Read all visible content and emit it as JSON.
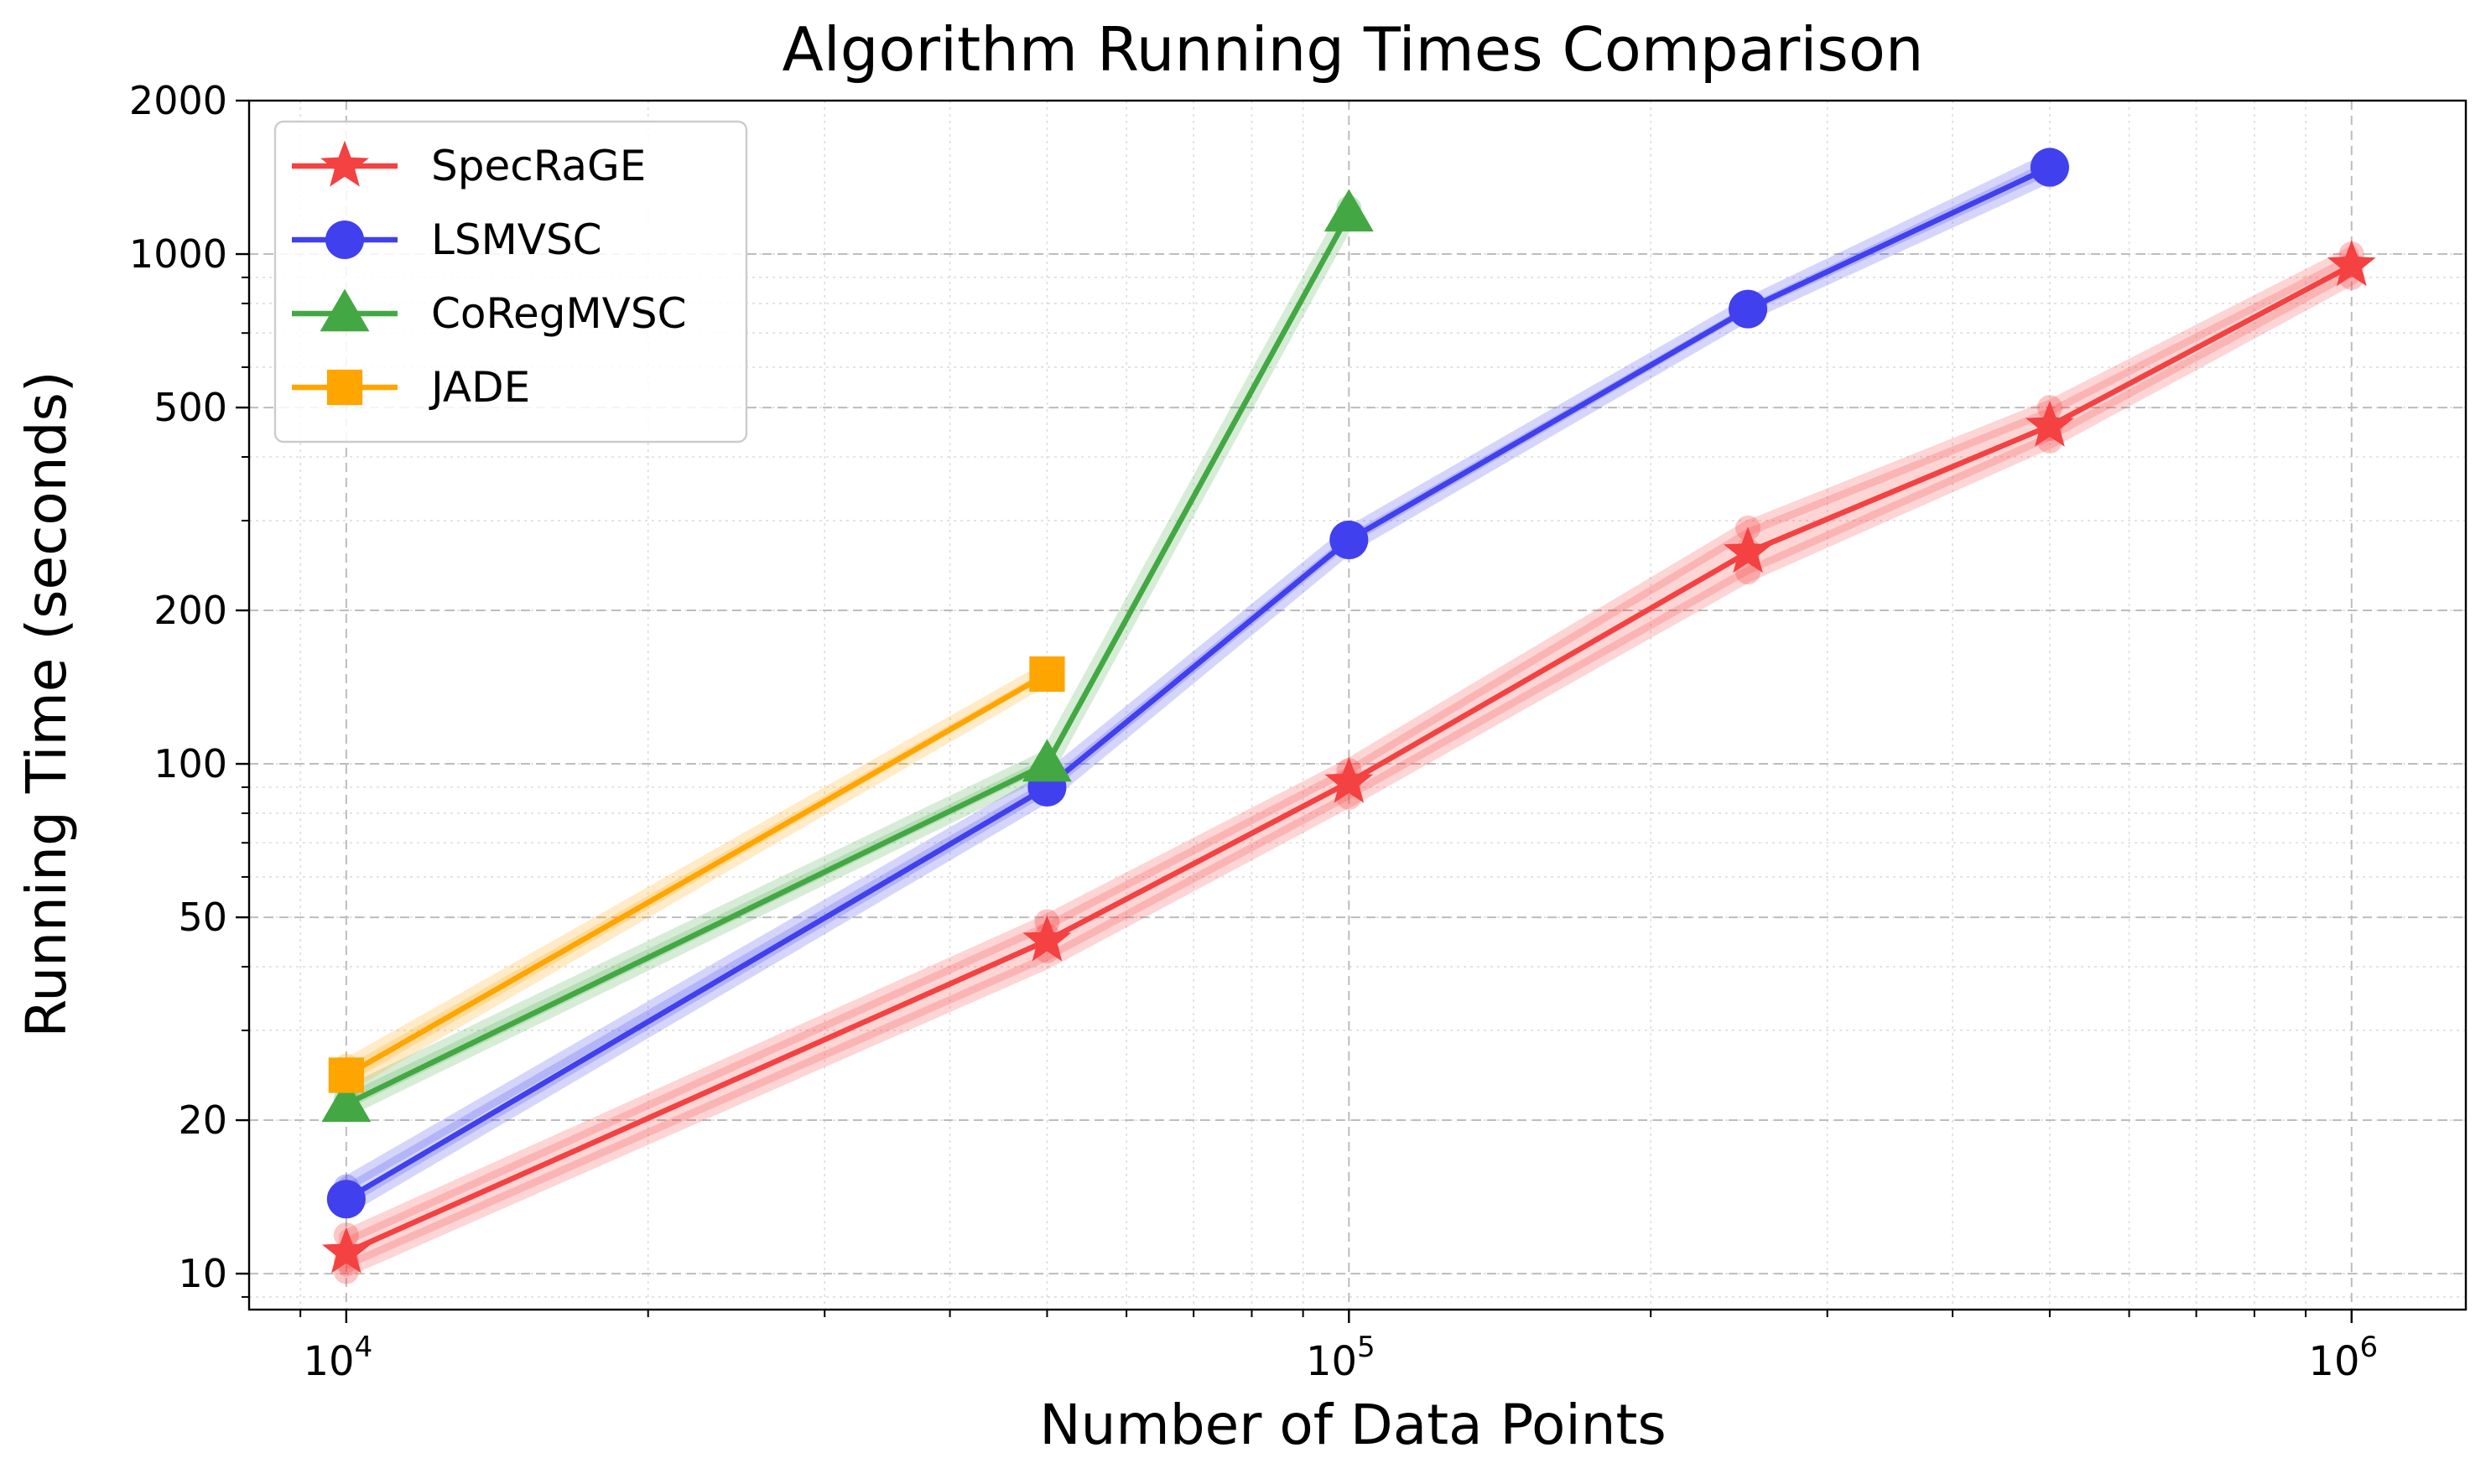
{
  "chart_data": {
    "type": "line",
    "title": "Algorithm Running Times Comparison",
    "xlabel": "Number of Data Points",
    "ylabel": "Running Time (seconds)",
    "xscale": "log",
    "yscale": "log",
    "xlim": [
      8000,
      1300000
    ],
    "ylim": [
      8.5,
      2000
    ],
    "x_ticks": [
      {
        "value": 10000,
        "base": "10",
        "exp": "4"
      },
      {
        "value": 100000,
        "base": "10",
        "exp": "5"
      },
      {
        "value": 1000000,
        "base": "10",
        "exp": "6"
      }
    ],
    "y_ticks": [
      {
        "value": 10,
        "label": "10"
      },
      {
        "value": 20,
        "label": "20"
      },
      {
        "value": 50,
        "label": "50"
      },
      {
        "value": 100,
        "label": "100"
      },
      {
        "value": 200,
        "label": "200"
      },
      {
        "value": 500,
        "label": "500"
      },
      {
        "value": 1000,
        "label": "1000"
      },
      {
        "value": 2000,
        "label": "2000"
      }
    ],
    "grid": true,
    "legend_position": "top-left",
    "series": [
      {
        "name": "SpecRaGE",
        "color": "#f44141",
        "marker": "star",
        "x": [
          10000,
          50000,
          100000,
          250000,
          500000,
          1000000
        ],
        "values": [
          11,
          45,
          92,
          260,
          460,
          950
        ],
        "band": [
          [
            10.2,
            11.8
          ],
          [
            41,
            49
          ],
          [
            85,
            99
          ],
          [
            235,
            290
          ],
          [
            430,
            500
          ],
          [
            900,
            1000
          ]
        ],
        "trials": [
          [
            10000,
            10.1
          ],
          [
            10000,
            11.9
          ],
          [
            10000,
            10.6
          ],
          [
            50000,
            49
          ],
          [
            50000,
            43
          ],
          [
            50000,
            46
          ],
          [
            100000,
            86
          ],
          [
            100000,
            97
          ],
          [
            100000,
            92
          ],
          [
            250000,
            238
          ],
          [
            250000,
            290
          ],
          [
            250000,
            262
          ],
          [
            500000,
            430
          ],
          [
            500000,
            500
          ],
          [
            500000,
            455
          ],
          [
            1000000,
            900
          ],
          [
            1000000,
            1000
          ],
          [
            1000000,
            950
          ]
        ]
      },
      {
        "name": "LSMVSC",
        "color": "#4040ee",
        "marker": "circle",
        "x": [
          10000,
          50000,
          100000,
          250000,
          500000
        ],
        "values": [
          14,
          90,
          275,
          780,
          1480
        ],
        "band": [
          [
            13.5,
            15
          ],
          [
            87,
            93
          ],
          [
            268,
            282
          ],
          [
            765,
            795
          ],
          [
            1430,
            1530
          ]
        ],
        "trials": [
          [
            10000,
            14.8
          ],
          [
            10000,
            13.6
          ],
          [
            50000,
            88
          ],
          [
            50000,
            92
          ],
          [
            100000,
            270
          ],
          [
            100000,
            280
          ],
          [
            250000,
            770
          ],
          [
            250000,
            790
          ],
          [
            500000,
            1430
          ],
          [
            500000,
            1530
          ]
        ]
      },
      {
        "name": "CoRegMVSC",
        "color": "#43a843",
        "marker": "triangle",
        "x": [
          10000,
          50000,
          100000
        ],
        "values": [
          21.5,
          100,
          1200
        ],
        "band": [
          [
            21,
            22.5
          ],
          [
            98,
            103
          ],
          [
            1180,
            1230
          ]
        ],
        "trials": [
          [
            10000,
            22
          ],
          [
            50000,
            100
          ],
          [
            100000,
            1230
          ],
          [
            100000,
            1190
          ]
        ]
      },
      {
        "name": "JADE",
        "color": "#ffa500",
        "marker": "square",
        "x": [
          10000,
          50000
        ],
        "values": [
          24.5,
          150
        ],
        "band": [
          [
            23.5,
            25.5
          ],
          [
            148,
            153
          ]
        ],
        "trials": [
          [
            10000,
            23.5
          ],
          [
            10000,
            25.5
          ],
          [
            50000,
            150
          ]
        ]
      }
    ]
  }
}
